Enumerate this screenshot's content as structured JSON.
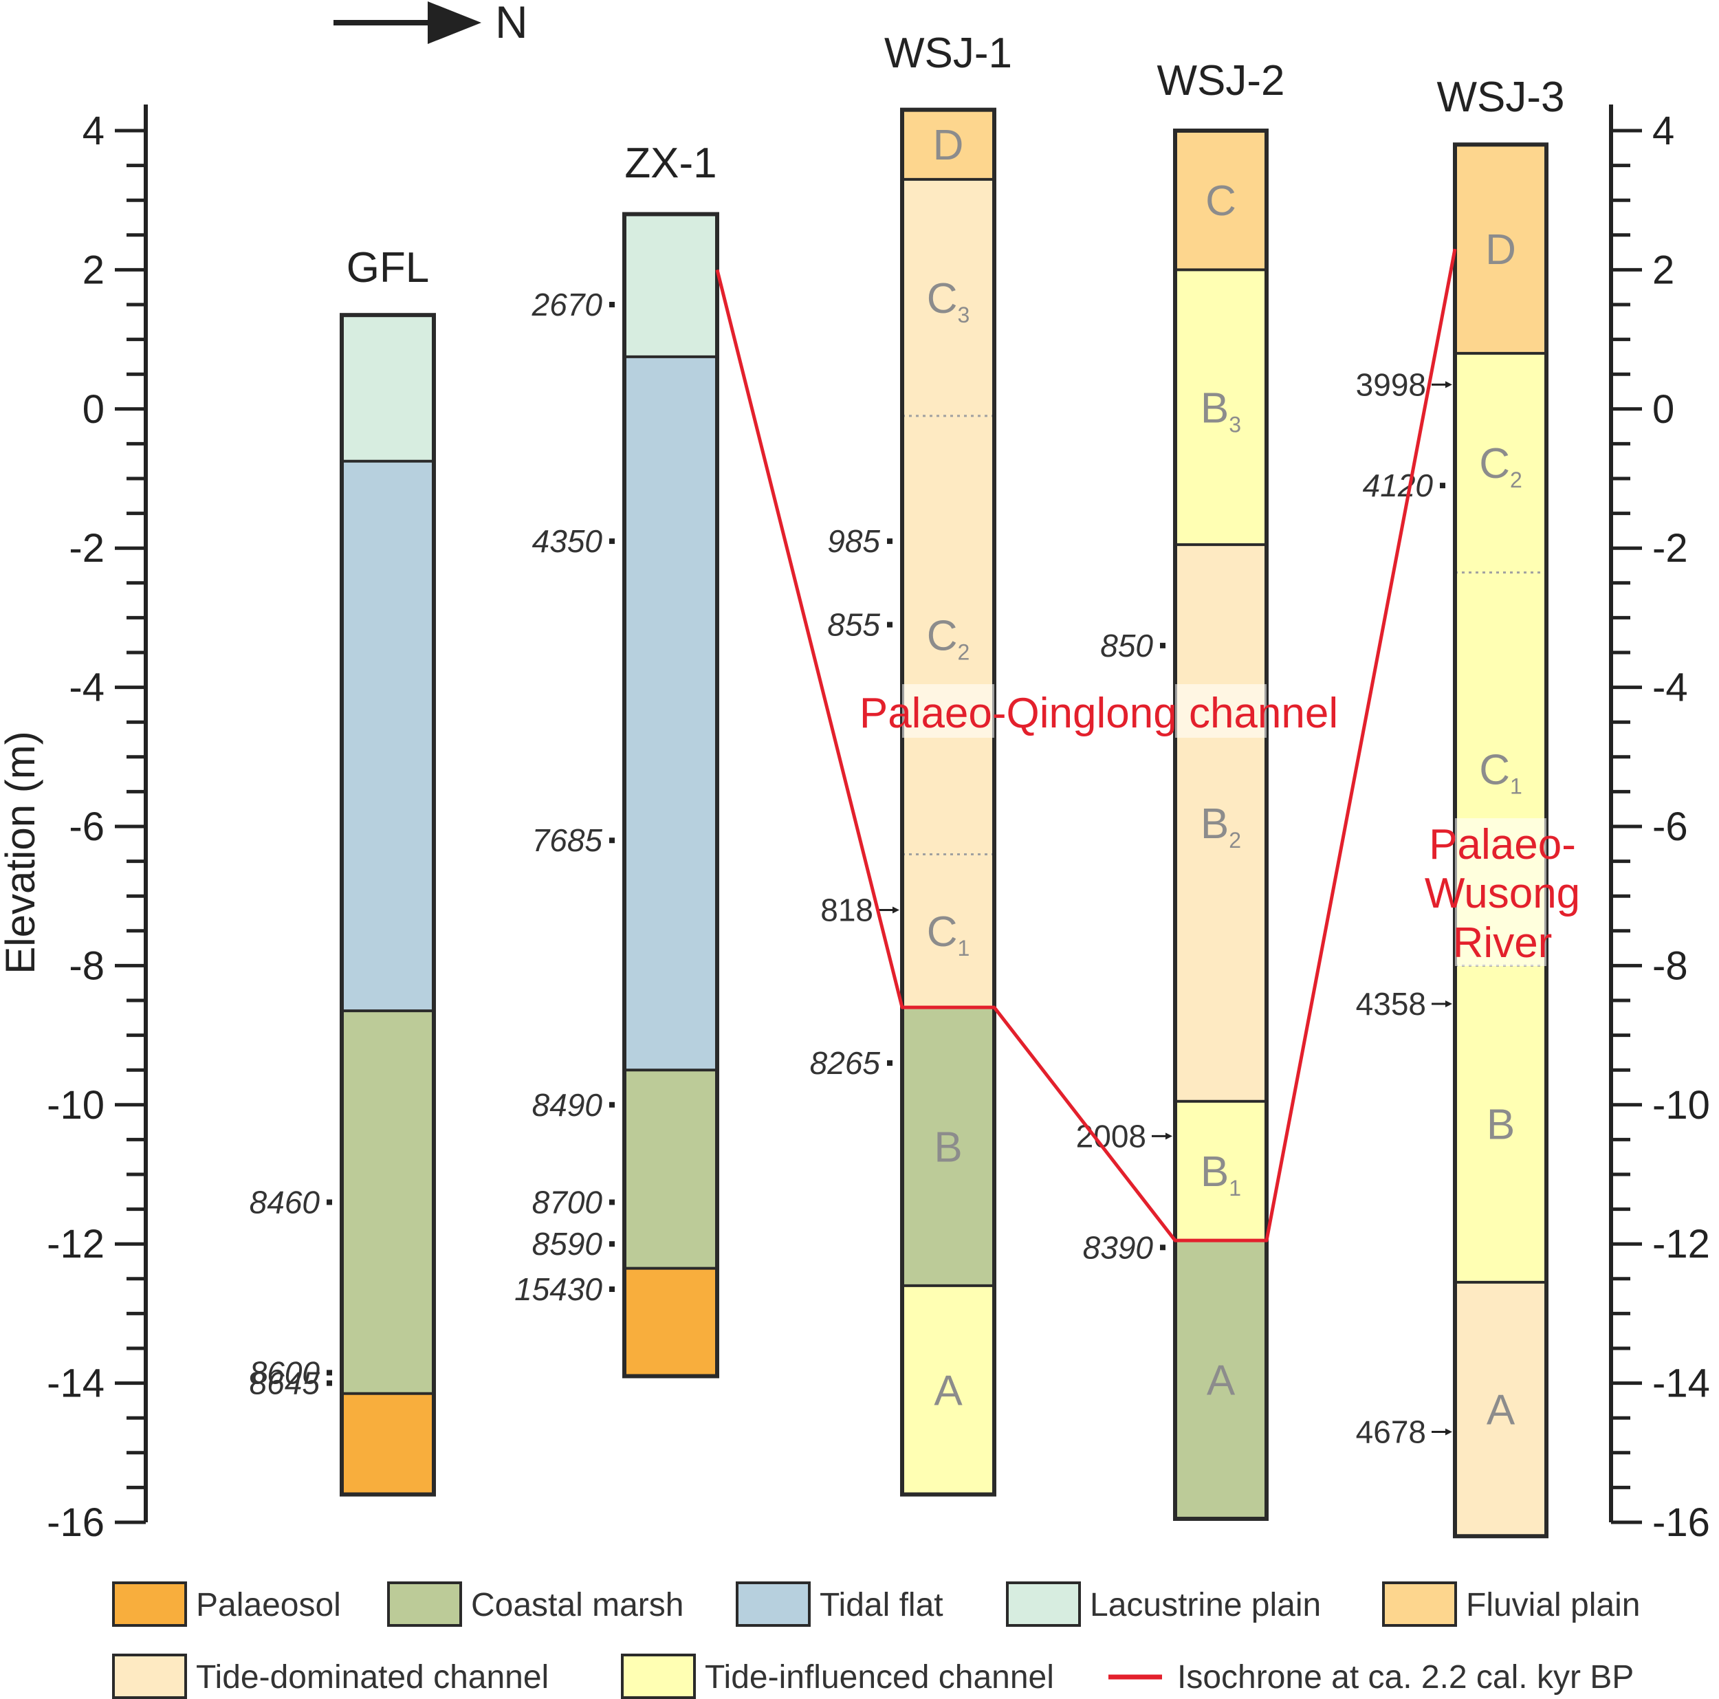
{
  "direction": {
    "label": "N"
  },
  "axis": {
    "ylabel": "Elevation (m)",
    "ylim": [
      -16,
      4
    ],
    "ticks": [
      "4",
      "2",
      "0",
      "-2",
      "-4",
      "-6",
      "-8",
      "-10",
      "-12",
      "-14",
      "-16"
    ]
  },
  "colors": {
    "palaeosol": "#f8ae3d",
    "coastal_marsh": "#bccb98",
    "tidal_flat": "#b7d0de",
    "lacustrine_plain": "#d7ede0",
    "fluvial_plain": "#fdd68e",
    "tide_dominated_channel": "#feeac2",
    "tide_influenced_channel": "#ffffb3",
    "isochrone": "#e3202c"
  },
  "cores": [
    {
      "name": "GFL",
      "top": 1.35,
      "units": [
        {
          "facies": "lacustrine_plain",
          "top": 1.35,
          "bottom": -0.75
        },
        {
          "facies": "tidal_flat",
          "top": -0.75,
          "bottom": -8.65
        },
        {
          "facies": "coastal_marsh",
          "top": -8.65,
          "bottom": -14.15
        },
        {
          "facies": "palaeosol",
          "top": -14.15,
          "bottom": -15.6
        }
      ],
      "ages": [
        {
          "text": "8460",
          "elev": -11.4,
          "italic": true
        },
        {
          "text": "8600",
          "elev": -13.85,
          "italic": true
        },
        {
          "text": "8645",
          "elev": -14.0,
          "italic": true
        }
      ]
    },
    {
      "name": "ZX-1",
      "top": 2.8,
      "units": [
        {
          "facies": "lacustrine_plain",
          "top": 2.8,
          "bottom": 0.75
        },
        {
          "facies": "tidal_flat",
          "top": 0.75,
          "bottom": -9.5
        },
        {
          "facies": "coastal_marsh",
          "top": -9.5,
          "bottom": -12.35
        },
        {
          "facies": "palaeosol",
          "top": -12.35,
          "bottom": -13.9
        }
      ],
      "ages": [
        {
          "text": "2670",
          "elev": 1.5,
          "italic": true
        },
        {
          "text": "4350",
          "elev": -1.9,
          "italic": true
        },
        {
          "text": "7685",
          "elev": -6.2,
          "italic": true
        },
        {
          "text": "8490",
          "elev": -10.0,
          "italic": true
        },
        {
          "text": "8700",
          "elev": -11.4,
          "italic": true
        },
        {
          "text": "8590",
          "elev": -12.0,
          "italic": true
        },
        {
          "text": "15430",
          "elev": -12.65,
          "italic": true
        }
      ]
    },
    {
      "name": "WSJ-1",
      "top": 4.3,
      "units": [
        {
          "facies": "fluvial_plain",
          "top": 4.3,
          "bottom": 3.3,
          "label": "D",
          "sub": ""
        },
        {
          "facies": "tide_dominated_channel",
          "top": 3.3,
          "bottom": -0.1,
          "label": "C",
          "sub": "3"
        },
        {
          "facies": "tide_dominated_channel",
          "top": -0.1,
          "bottom": -6.4,
          "label": "C",
          "sub": "2"
        },
        {
          "facies": "tide_dominated_channel",
          "top": -6.4,
          "bottom": -8.6,
          "label": "C",
          "sub": "1"
        },
        {
          "facies": "coastal_marsh",
          "top": -8.6,
          "bottom": -12.6,
          "label": "B",
          "sub": ""
        },
        {
          "facies": "tide_influenced_channel",
          "top": -12.6,
          "bottom": -15.6,
          "label": "A",
          "sub": ""
        }
      ],
      "ages": [
        {
          "text": "985",
          "elev": -1.9,
          "italic": true
        },
        {
          "text": "855",
          "elev": -3.1,
          "italic": true
        },
        {
          "text": "818",
          "elev": -7.2,
          "italic": false
        },
        {
          "text": "8265",
          "elev": -9.4,
          "italic": true
        }
      ]
    },
    {
      "name": "WSJ-2",
      "top": 4.0,
      "units": [
        {
          "facies": "fluvial_plain",
          "top": 4.0,
          "bottom": 2.0,
          "label": "C",
          "sub": ""
        },
        {
          "facies": "tide_influenced_channel",
          "top": 2.0,
          "bottom": -1.95,
          "label": "B",
          "sub": "3"
        },
        {
          "facies": "tide_dominated_channel",
          "top": -1.95,
          "bottom": -9.95,
          "label": "B",
          "sub": "2"
        },
        {
          "facies": "tide_influenced_channel",
          "top": -9.95,
          "bottom": -11.95,
          "label": "B",
          "sub": "1"
        },
        {
          "facies": "coastal_marsh",
          "top": -11.95,
          "bottom": -15.95,
          "label": "A",
          "sub": ""
        }
      ],
      "ages": [
        {
          "text": "850",
          "elev": -3.4,
          "italic": true
        },
        {
          "text": "2008",
          "elev": -10.45,
          "italic": false
        },
        {
          "text": "8390",
          "elev": -12.05,
          "italic": true
        }
      ]
    },
    {
      "name": "WSJ-3",
      "top": 3.8,
      "units": [
        {
          "facies": "fluvial_plain",
          "top": 3.8,
          "bottom": 0.8,
          "label": "D",
          "sub": ""
        },
        {
          "facies": "tide_influenced_channel",
          "top": 0.8,
          "bottom": -2.35,
          "label": "C",
          "sub": "2"
        },
        {
          "facies": "tide_influenced_channel",
          "top": -2.35,
          "bottom": -8.0,
          "label": "C",
          "sub": "1"
        },
        {
          "facies": "tide_influenced_channel",
          "top": -8.0,
          "bottom": -12.55,
          "label": "B",
          "sub": ""
        },
        {
          "facies": "tide_dominated_channel",
          "top": -12.55,
          "bottom": -16.2,
          "label": "A",
          "sub": ""
        }
      ],
      "ages": [
        {
          "text": "3998",
          "elev": 0.35,
          "italic": false
        },
        {
          "text": "4120",
          "elev": -1.1,
          "italic": true
        },
        {
          "text": "4358",
          "elev": -8.55,
          "italic": false
        },
        {
          "text": "4678",
          "elev": -14.7,
          "italic": false
        }
      ]
    }
  ],
  "annotations": {
    "qinglong": "Palaeo-Qinglong channel",
    "wusong": [
      "Palaeo-",
      "Wusong",
      "River"
    ]
  },
  "isochrone": [
    {
      "core": "ZX-1",
      "side": "right",
      "elev": 2.0
    },
    {
      "core": "WSJ-1",
      "side": "left",
      "elev": -8.6
    },
    {
      "core": "WSJ-1",
      "side": "right",
      "elev": -8.6
    },
    {
      "core": "WSJ-2",
      "side": "left",
      "elev": -11.95
    },
    {
      "core": "WSJ-2",
      "side": "right",
      "elev": -11.95
    },
    {
      "core": "WSJ-3",
      "side": "left",
      "elev": 2.3
    }
  ],
  "legend": [
    {
      "key": "palaeosol",
      "label": "Palaeosol"
    },
    {
      "key": "coastal_marsh",
      "label": "Coastal marsh"
    },
    {
      "key": "tidal_flat",
      "label": "Tidal flat"
    },
    {
      "key": "lacustrine_plain",
      "label": "Lacustrine plain"
    },
    {
      "key": "fluvial_plain",
      "label": "Fluvial plain"
    },
    {
      "key": "tide_dominated_channel",
      "label": "Tide-dominated channel"
    },
    {
      "key": "tide_influenced_channel",
      "label": "Tide-influenced channel"
    },
    {
      "key": "isochrone",
      "label": "Isochrone at ca. 2.2 cal. kyr BP"
    }
  ]
}
